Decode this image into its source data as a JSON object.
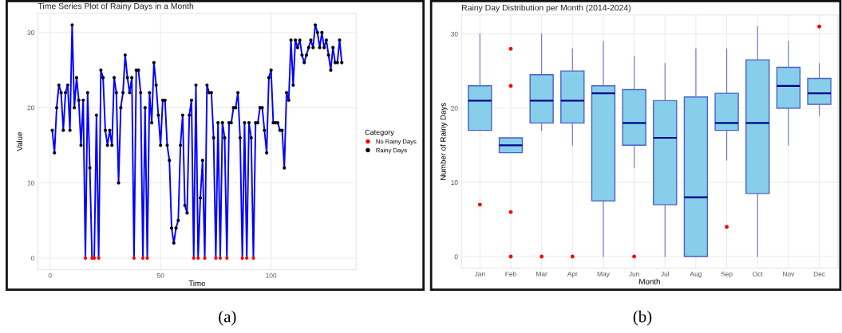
{
  "chart_data": [
    {
      "type": "line",
      "title": "Time Series Plot of Rainy Days in a Month",
      "xlabel": "Time",
      "ylabel": "Value",
      "legend_title": "Category",
      "legend": "right",
      "grid": true,
      "xlim": [
        -5.5,
        138.5
      ],
      "xticks": [
        0,
        50,
        100
      ],
      "ylim": [
        -1.55,
        32.55
      ],
      "yticks": [
        0,
        10,
        20,
        30
      ],
      "annotations": [
        "(a)"
      ],
      "series": [
        {
          "type": "line",
          "color": "#0000ff",
          "marker": "none",
          "x": [
            1,
            2,
            3,
            4,
            5,
            6,
            7,
            8,
            9,
            10,
            11,
            12,
            13,
            14,
            15,
            16,
            17,
            18,
            19,
            20,
            21,
            22,
            23,
            24,
            25,
            26,
            27,
            28,
            29,
            30,
            31,
            32,
            33,
            34,
            35,
            36,
            37,
            38,
            39,
            40,
            41,
            42,
            43,
            44,
            45,
            46,
            47,
            48,
            49,
            50,
            51,
            52,
            53,
            54,
            55,
            56,
            57,
            58,
            59,
            60,
            61,
            62,
            63,
            64,
            65,
            66,
            67,
            68,
            69,
            70,
            71,
            72,
            73,
            74,
            75,
            76,
            77,
            78,
            79,
            80,
            81,
            82,
            83,
            84,
            85,
            86,
            87,
            88,
            89,
            90,
            91,
            92,
            93,
            94,
            95,
            96,
            97,
            98,
            99,
            100,
            101,
            102,
            103,
            104,
            105,
            106,
            107,
            108,
            109,
            110,
            111,
            112,
            113,
            114,
            115,
            116,
            117,
            118,
            119,
            120,
            121,
            122,
            123,
            124,
            125,
            126,
            127,
            128,
            129,
            130,
            131,
            132
          ],
          "values": [
            17,
            14,
            20,
            23,
            22,
            17,
            22,
            23,
            17,
            31,
            20,
            24,
            21,
            15,
            21,
            0,
            22,
            12,
            0,
            0,
            19,
            0,
            25,
            24,
            17,
            15,
            17,
            15,
            24,
            22,
            10,
            20,
            22,
            27,
            24,
            22,
            24,
            0,
            25,
            25,
            22,
            0,
            20,
            0,
            22,
            18,
            26,
            23,
            19,
            15,
            21,
            21,
            15,
            13,
            4,
            2,
            4,
            5,
            15,
            19,
            7,
            6,
            19,
            21,
            0,
            23,
            0,
            8,
            13,
            0,
            23,
            22,
            22,
            16,
            0,
            18,
            0,
            18,
            16,
            0,
            18,
            18,
            20,
            20,
            22,
            16,
            0,
            18,
            0,
            18,
            16,
            0,
            18,
            18,
            20,
            20,
            17,
            14,
            24,
            25,
            18,
            18,
            18,
            17,
            17,
            12,
            22,
            21,
            29,
            23,
            29,
            28,
            29,
            27,
            26,
            27,
            28,
            29,
            28,
            31,
            30,
            28,
            30,
            28,
            29,
            27,
            25,
            28,
            26,
            26,
            29,
            26
          ]
        },
        {
          "type": "scatter",
          "name": "No Rainy Days",
          "color": "#ff0000",
          "marker": "circle",
          "x": [
            16,
            19,
            20,
            22,
            38,
            42,
            44,
            65,
            67,
            70,
            75,
            77,
            80,
            87,
            89,
            92
          ],
          "values": [
            0,
            0,
            0,
            0,
            0,
            0,
            0,
            0,
            0,
            0,
            0,
            0,
            0,
            0,
            0,
            0
          ]
        },
        {
          "type": "scatter",
          "name": "Rainy Days",
          "color": "#000000",
          "marker": "circle",
          "x": [
            1,
            2,
            3,
            4,
            5,
            6,
            7,
            8,
            9,
            10,
            11,
            12,
            13,
            14,
            15,
            17,
            18,
            21,
            23,
            24,
            25,
            26,
            27,
            28,
            29,
            30,
            31,
            32,
            33,
            34,
            35,
            36,
            37,
            39,
            40,
            41,
            43,
            45,
            46,
            47,
            48,
            49,
            50,
            51,
            52,
            53,
            54,
            55,
            56,
            57,
            58,
            59,
            60,
            61,
            62,
            63,
            64,
            66,
            68,
            69,
            71,
            72,
            73,
            74,
            76,
            78,
            79,
            81,
            82,
            83,
            84,
            85,
            86,
            88,
            90,
            91,
            93,
            94,
            95,
            96,
            97,
            98,
            99,
            100,
            101,
            102,
            103,
            104,
            105,
            106,
            107,
            108,
            109,
            110,
            111,
            112,
            113,
            114,
            115,
            116,
            117,
            118,
            119,
            120,
            121,
            122,
            123,
            124,
            125,
            126,
            127,
            128,
            129,
            130,
            131,
            132
          ],
          "values": [
            17,
            14,
            20,
            23,
            22,
            17,
            22,
            23,
            17,
            31,
            20,
            24,
            21,
            15,
            21,
            22,
            12,
            19,
            25,
            24,
            17,
            15,
            17,
            15,
            24,
            22,
            10,
            20,
            22,
            27,
            24,
            22,
            24,
            25,
            25,
            22,
            20,
            22,
            18,
            26,
            23,
            19,
            15,
            21,
            21,
            15,
            13,
            4,
            2,
            4,
            5,
            15,
            19,
            7,
            6,
            19,
            21,
            23,
            8,
            13,
            23,
            22,
            22,
            16,
            18,
            18,
            16,
            18,
            18,
            20,
            20,
            22,
            16,
            18,
            18,
            16,
            18,
            18,
            20,
            20,
            17,
            14,
            24,
            25,
            18,
            18,
            18,
            17,
            17,
            12,
            22,
            21,
            29,
            23,
            29,
            28,
            29,
            27,
            26,
            27,
            28,
            29,
            28,
            31,
            30,
            28,
            30,
            28,
            29,
            27,
            25,
            28,
            26,
            26,
            29,
            26
          ]
        }
      ]
    },
    {
      "type": "box",
      "title": "Rainy Day Distribution per Month (2014-2024)",
      "xlabel": "Month",
      "ylabel": "Number of Rainy Days",
      "grid": true,
      "ylim": [
        -1.55,
        32.55
      ],
      "yticks": [
        0,
        10,
        20,
        30
      ],
      "annotations": [
        "(b)"
      ],
      "categories": [
        "Jan",
        "Feb",
        "Mar",
        "Apr",
        "May",
        "Jun",
        "Jul",
        "Aug",
        "Sep",
        "Oct",
        "Nov",
        "Dec"
      ],
      "series": [
        {
          "color": "#87ceeb",
          "boxes": [
            {
              "low": 17,
              "q1": 17,
              "median": 21,
              "q3": 23,
              "high": 30,
              "outliers": [
                7
              ]
            },
            {
              "low": 14,
              "q1": 14,
              "median": 15,
              "q3": 16,
              "high": 16,
              "outliers": [
                28,
                23,
                6,
                0
              ]
            },
            {
              "low": 17,
              "q1": 18,
              "median": 21,
              "q3": 24.5,
              "high": 30,
              "outliers": [
                0
              ]
            },
            {
              "low": 15,
              "q1": 18,
              "median": 21,
              "q3": 25,
              "high": 28,
              "outliers": [
                0
              ]
            },
            {
              "low": 0,
              "q1": 7.5,
              "median": 22,
              "q3": 23,
              "high": 29
            },
            {
              "low": 12,
              "q1": 15,
              "median": 18,
              "q3": 22.5,
              "high": 27,
              "outliers": [
                0
              ]
            },
            {
              "low": 0,
              "q1": 7,
              "median": 16,
              "q3": 21,
              "high": 26
            },
            {
              "low": 0,
              "q1": 0,
              "median": 8,
              "q3": 21.5,
              "high": 28
            },
            {
              "low": 13,
              "q1": 17,
              "median": 18,
              "q3": 22,
              "high": 28,
              "outliers": [
                4
              ]
            },
            {
              "low": 0,
              "q1": 8.5,
              "median": 18,
              "q3": 26.5,
              "high": 31
            },
            {
              "low": 15,
              "q1": 20,
              "median": 23,
              "q3": 25.5,
              "high": 29
            },
            {
              "low": 19,
              "q1": 20.5,
              "median": 22,
              "q3": 24,
              "high": 26,
              "outliers": [
                31
              ]
            }
          ]
        }
      ]
    }
  ]
}
